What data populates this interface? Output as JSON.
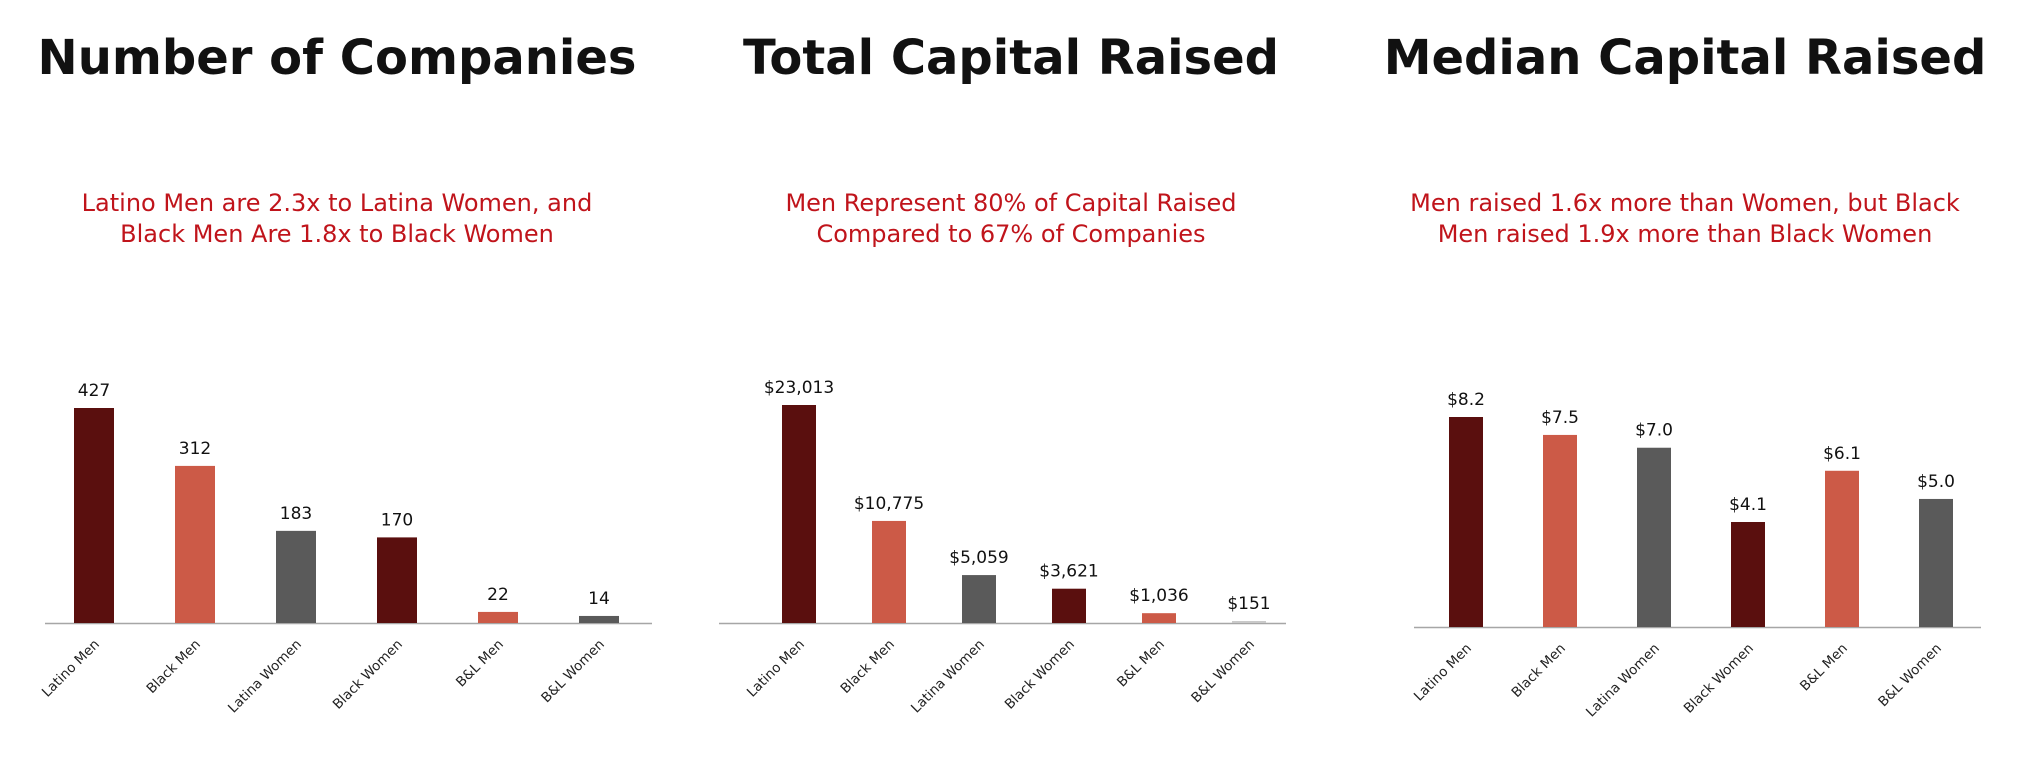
{
  "colors": {
    "dark": "#5a0f0e",
    "salmon": "#cc5a47",
    "gray": "#5a5a5a",
    "light": "#c9c9c9",
    "axis": "#a6a6a6"
  },
  "chart_data": [
    {
      "type": "bar",
      "title": "Number of Companies",
      "subtitle": [
        "Latino Men are 2.3x to Latina Women, and",
        "Black Men Are 1.8x to Black Women"
      ],
      "categories": [
        "Latino Men",
        "Black Men",
        "Latina Women",
        "Black Women",
        "B&L Men",
        "B&L Women"
      ],
      "values": [
        427,
        312,
        183,
        170,
        22,
        14
      ],
      "labels": [
        "427",
        "312",
        "183",
        "170",
        "22",
        "14"
      ],
      "colors": [
        "dark",
        "salmon",
        "gray",
        "dark",
        "salmon",
        "gray"
      ]
    },
    {
      "type": "bar",
      "title": "Total Capital Raised",
      "subtitle": [
        "Men Represent 80% of Capital Raised",
        "Compared to 67% of Companies"
      ],
      "categories": [
        "Latino Men",
        "Black Men",
        "Latina Women",
        "Black Women",
        "B&L Men",
        "B&L Women"
      ],
      "values": [
        23013,
        10775,
        5059,
        3621,
        1036,
        151
      ],
      "labels": [
        "$23,013",
        "$10,775",
        "$5,059",
        "$3,621",
        "$1,036",
        "$151"
      ],
      "colors": [
        "dark",
        "salmon",
        "gray",
        "dark",
        "salmon",
        "light"
      ]
    },
    {
      "type": "bar",
      "title": "Median Capital Raised",
      "subtitle": [
        "Men raised 1.6x more than Women, but Black",
        "Men raised 1.9x more than Black Women"
      ],
      "categories": [
        "Latino Men",
        "Black Men",
        "Latina Women",
        "Black Women",
        "B&L Men",
        "B&L Women"
      ],
      "values": [
        8.2,
        7.5,
        7.0,
        4.1,
        6.1,
        5.0
      ],
      "labels": [
        "$8.2",
        "$7.5",
        "$7.0",
        "$4.1",
        "$6.1",
        "$5.0"
      ],
      "colors": [
        "dark",
        "salmon",
        "gray",
        "dark",
        "salmon",
        "gray"
      ]
    }
  ]
}
